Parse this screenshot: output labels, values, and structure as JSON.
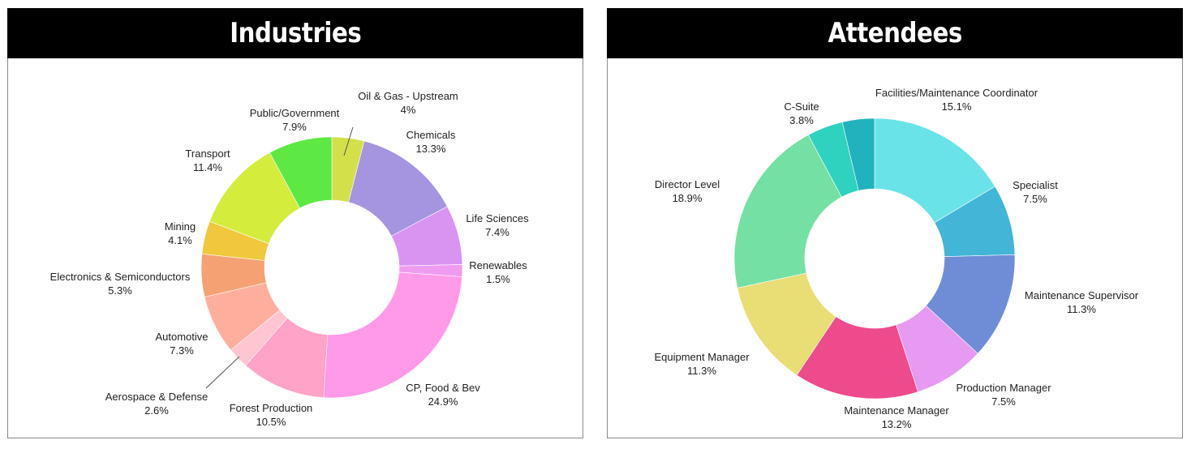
{
  "chart_data": [
    {
      "type": "donut",
      "title": "Industries",
      "unit": "%",
      "slices": [
        {
          "label": "Oil & Gas - Upstream",
          "value": 4,
          "value_label": "4%",
          "color": "#d4e04a"
        },
        {
          "label": "Chemicals",
          "value": 13.3,
          "value_label": "13.3%",
          "color": "#a594e0"
        },
        {
          "label": "Life Sciences",
          "value": 7.4,
          "value_label": "7.4%",
          "color": "#d994f2"
        },
        {
          "label": "Renewables",
          "value": 1.5,
          "value_label": "1.5%",
          "color": "#ef9cf0"
        },
        {
          "label": "CP, Food & Bev",
          "value": 24.9,
          "value_label": "24.9%",
          "color": "#ff9ae8"
        },
        {
          "label": "Forest Production",
          "value": 10.5,
          "value_label": "10.5%",
          "color": "#ffa3c8"
        },
        {
          "label": "Aerospace & Defense",
          "value": 2.6,
          "value_label": "2.6%",
          "color": "#ffc6d2"
        },
        {
          "label": "Automotive",
          "value": 7.3,
          "value_label": "7.3%",
          "color": "#ffae9e"
        },
        {
          "label": "Electronics & Semiconductors",
          "value": 5.3,
          "value_label": "5.3%",
          "color": "#f6a173"
        },
        {
          "label": "Mining",
          "value": 4.1,
          "value_label": "4.1%",
          "color": "#efc93b"
        },
        {
          "label": "Transport",
          "value": 11.4,
          "value_label": "11.4%",
          "color": "#d4ec3c"
        },
        {
          "label": "Public/Government",
          "value": 7.9,
          "value_label": "7.9%",
          "color": "#5ee844"
        }
      ]
    },
    {
      "type": "donut",
      "title": "Attendees",
      "unit": "%",
      "slices": [
        {
          "label": "Facilities/Maintenance Coordinator",
          "value": 15.1,
          "value_label": "15.1%",
          "color": "#6ae3e8"
        },
        {
          "label": "Specialist",
          "value": 7.5,
          "value_label": "7.5%",
          "color": "#43b5d6"
        },
        {
          "label": "Maintenance Supervisor",
          "value": 11.3,
          "value_label": "11.3%",
          "color": "#6e8dd6"
        },
        {
          "label": "Production Manager",
          "value": 7.5,
          "value_label": "7.5%",
          "color": "#e79af2"
        },
        {
          "label": "Maintenance Manager",
          "value": 13.2,
          "value_label": "13.2%",
          "color": "#ee4b8c"
        },
        {
          "label": "Equipment Manager",
          "value": 11.3,
          "value_label": "11.3%",
          "color": "#e9dd76"
        },
        {
          "label": "Director Level",
          "value": 18.9,
          "value_label": "18.9%",
          "color": "#75e0a4"
        },
        {
          "label": "C-Suite",
          "value": 3.8,
          "value_label": "3.8%",
          "color": "#2fd2bf"
        },
        {
          "label": "",
          "value": 3.4,
          "value_label": "",
          "color": "#22b2be"
        }
      ]
    }
  ]
}
